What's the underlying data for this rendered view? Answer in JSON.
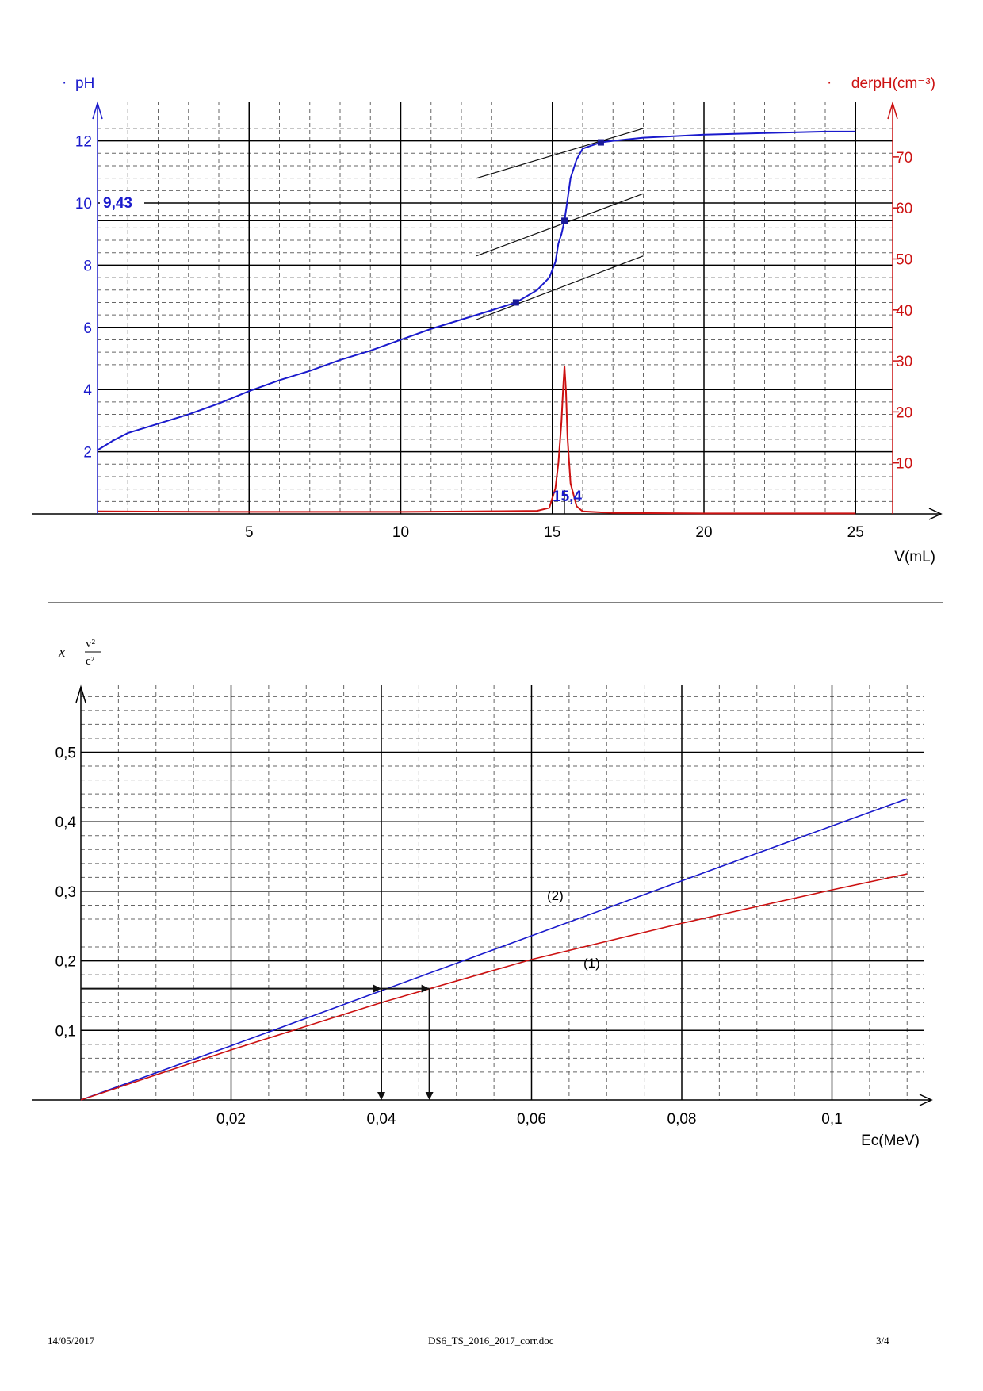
{
  "chart_data": [
    {
      "type": "line",
      "xlabel": "V(mL)",
      "ylabel_left": "pH",
      "ylabel_right": "derpH(cm⁻³)",
      "xlim": [
        0,
        26
      ],
      "ylim_left": [
        0,
        12.3
      ],
      "ylim_right": [
        0,
        75
      ],
      "x_ticks": [
        5,
        10,
        15,
        20,
        25
      ],
      "y_ticks_left": [
        2,
        4,
        6,
        8,
        10,
        12
      ],
      "y_ticks_right": [
        10,
        20,
        30,
        40,
        50,
        60,
        70
      ],
      "grid": true,
      "annotations": [
        {
          "text": "9,43",
          "axis": "y",
          "value": 9.43
        },
        {
          "text": "15,4",
          "axis": "x",
          "value": 15.4
        }
      ],
      "series": [
        {
          "name": "pH",
          "color": "#1a1acc",
          "x": [
            0,
            0.5,
            1,
            2,
            3,
            4,
            5,
            6,
            7,
            8,
            9,
            10,
            11,
            12,
            13,
            13.8,
            14.5,
            14.9,
            15.1,
            15.2,
            15.3,
            15.4,
            15.5,
            15.6,
            15.8,
            16,
            16.3,
            16.6,
            17,
            18,
            19,
            20,
            22,
            24,
            25
          ],
          "values": [
            2.05,
            2.35,
            2.6,
            2.9,
            3.2,
            3.55,
            3.95,
            4.3,
            4.6,
            4.95,
            5.25,
            5.6,
            5.95,
            6.25,
            6.55,
            6.8,
            7.2,
            7.6,
            8.1,
            8.7,
            9.0,
            9.43,
            10.1,
            10.8,
            11.4,
            11.75,
            11.85,
            11.95,
            12.0,
            12.1,
            12.15,
            12.2,
            12.25,
            12.3,
            12.3
          ]
        },
        {
          "name": "derpH(cm⁻³)",
          "color": "#cc1111",
          "x": [
            0,
            5,
            10,
            14.5,
            14.9,
            15.1,
            15.2,
            15.3,
            15.35,
            15.4,
            15.45,
            15.5,
            15.6,
            15.8,
            16,
            17,
            20,
            25
          ],
          "values": [
            0.5,
            0.4,
            0.4,
            0.6,
            1.2,
            5,
            10,
            18,
            24,
            29,
            24,
            15,
            6,
            1.5,
            0.5,
            0.2,
            0.1,
            0.1
          ]
        }
      ],
      "markers": [
        {
          "x": 13.8,
          "y": 6.8
        },
        {
          "x": 15.4,
          "y": 9.43
        },
        {
          "x": 16.6,
          "y": 11.95
        }
      ],
      "tangents": [
        {
          "x": [
            12.5,
            18
          ],
          "y": [
            6.25,
            8.3
          ]
        },
        {
          "x": [
            12.5,
            18
          ],
          "y": [
            8.3,
            10.3
          ]
        },
        {
          "x": [
            12.5,
            18
          ],
          "y": [
            10.8,
            12.4
          ]
        }
      ]
    },
    {
      "type": "line",
      "ylabel": "x = v²/c²",
      "ylabel_lhs": "x =",
      "ylabel_num": "v²",
      "ylabel_den": "c²",
      "xlabel": "Ec(MeV)",
      "xlim": [
        0,
        0.11
      ],
      "ylim": [
        0,
        0.58
      ],
      "x_ticks": [
        0.02,
        0.04,
        0.06,
        0.08,
        0.1
      ],
      "x_tick_labels": [
        "0,02",
        "0,04",
        "0,06",
        "0,08",
        "0,1"
      ],
      "y_ticks": [
        0.1,
        0.2,
        0.3,
        0.4,
        0.5
      ],
      "y_tick_labels": [
        "0,1",
        "0,2",
        "0,3",
        "0,4",
        "0,5"
      ],
      "grid": true,
      "series": [
        {
          "name": "(2)",
          "color": "#1a1acc",
          "x": [
            0,
            0.02,
            0.04,
            0.06,
            0.08,
            0.1,
            0.11
          ],
          "values": [
            0,
            0.078,
            0.157,
            0.236,
            0.315,
            0.394,
            0.433
          ]
        },
        {
          "name": "(1)",
          "color": "#cc1111",
          "x": [
            0,
            0.02,
            0.04,
            0.06,
            0.08,
            0.1,
            0.11
          ],
          "values": [
            0,
            0.072,
            0.14,
            0.202,
            0.254,
            0.302,
            0.325
          ]
        }
      ],
      "readings": {
        "y": 0.16,
        "x": [
          0.04,
          0.0464
        ]
      }
    }
  ],
  "footer": {
    "date": "14/05/2017",
    "filename": "DS6_TS_2016_2017_corr.doc",
    "page": "3/4"
  }
}
